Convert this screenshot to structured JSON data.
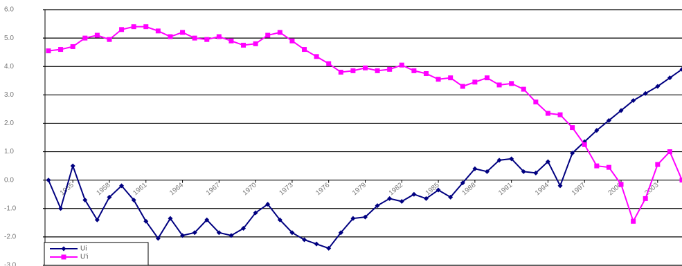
{
  "chart_data": {
    "type": "line",
    "x": [
      1953,
      1954,
      1955,
      1956,
      1957,
      1958,
      1959,
      1960,
      1961,
      1962,
      1963,
      1964,
      1965,
      1966,
      1967,
      1968,
      1969,
      1970,
      1971,
      1972,
      1973,
      1974,
      1975,
      1976,
      1977,
      1978,
      1979,
      1980,
      1981,
      1982,
      1983,
      1984,
      1985,
      1986,
      1987,
      1988,
      1989,
      1990,
      1991,
      1992,
      1993,
      1994,
      1995,
      1996,
      1997,
      1998,
      1999,
      2000,
      2001,
      2002,
      2003,
      2004,
      2005
    ],
    "series": [
      {
        "name": "Ui",
        "color": "#000080",
        "values": [
          0.0,
          -1.0,
          0.5,
          -0.7,
          -1.4,
          -0.6,
          -0.2,
          -0.7,
          -1.45,
          -2.05,
          -1.35,
          -1.95,
          -1.85,
          -1.4,
          -1.85,
          -1.95,
          -1.7,
          -1.15,
          -0.85,
          -1.4,
          -1.85,
          -2.1,
          -2.25,
          -2.4,
          -1.85,
          -1.35,
          -1.3,
          -0.9,
          -0.65,
          -0.75,
          -0.5,
          -0.65,
          -0.35,
          -0.6,
          -0.1,
          0.4,
          0.3,
          0.7,
          0.75,
          0.3,
          0.25,
          0.65,
          -0.2,
          0.95,
          1.35,
          1.75,
          2.1,
          2.45,
          2.8,
          3.05,
          3.3,
          3.6,
          3.9
        ]
      },
      {
        "name": "U'i",
        "color": "#ff00ff",
        "values": [
          4.55,
          4.6,
          4.7,
          5.0,
          5.1,
          4.95,
          5.3,
          5.4,
          5.4,
          5.25,
          5.05,
          5.2,
          5.0,
          4.95,
          5.05,
          4.9,
          4.75,
          4.8,
          5.1,
          5.2,
          4.9,
          4.6,
          4.35,
          4.1,
          3.8,
          3.85,
          3.95,
          3.85,
          3.9,
          4.05,
          3.85,
          3.75,
          3.55,
          3.6,
          3.3,
          3.45,
          3.6,
          3.35,
          3.4,
          3.2,
          2.75,
          2.35,
          2.3,
          1.85,
          1.25,
          0.5,
          0.45,
          -0.15,
          -1.45,
          -0.65,
          0.55,
          1.0,
          0.0
        ]
      }
    ],
    "xlim": [
      1953,
      2005
    ],
    "xticks": [
      1955,
      1958,
      1961,
      1964,
      1967,
      1970,
      1973,
      1976,
      1979,
      1982,
      1985,
      1988,
      1991,
      1994,
      1997,
      2000,
      2003
    ],
    "ylim": [
      -3,
      6
    ],
    "yticks": [
      {
        "value": -3,
        "label": "-3.0"
      },
      {
        "value": -2,
        "label": "-2.0"
      },
      {
        "value": -1,
        "label": "-1.0"
      },
      {
        "value": 0,
        "label": "0.0"
      },
      {
        "value": 1,
        "label": "1.0"
      },
      {
        "value": 2,
        "label": "2.0"
      },
      {
        "value": 3,
        "label": "3.0"
      },
      {
        "value": 4,
        "label": "4.0"
      },
      {
        "value": 5,
        "label": "5.0"
      },
      {
        "value": 6,
        "label": "6.0"
      }
    ],
    "grid": true,
    "legend": "lower left"
  }
}
